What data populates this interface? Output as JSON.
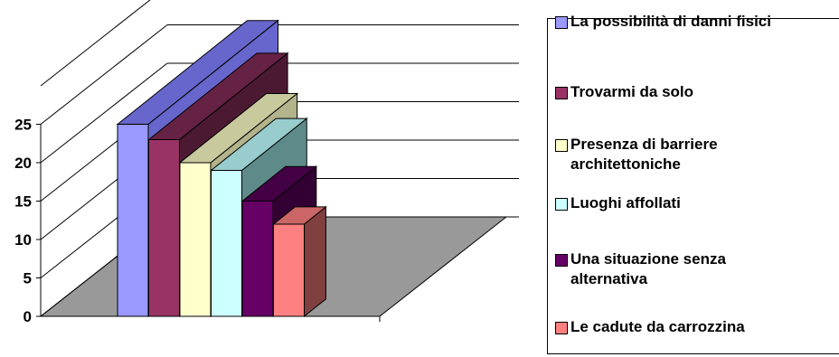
{
  "chart_data": {
    "type": "bar",
    "categories": [
      "La possibilità di danni fisici",
      "Trovarmi da solo",
      "Presenza di barriere architettoniche",
      "Luoghi affollati",
      "Una situazione senza alternativa",
      "Le cadute da carrozzina"
    ],
    "values": [
      25,
      23,
      20,
      19,
      15,
      12
    ],
    "title": "",
    "xlabel": "",
    "ylabel": "",
    "ylim": [
      0,
      25
    ],
    "yticks": [
      "0",
      "5",
      "10",
      "15",
      "20",
      "25"
    ],
    "grid": true,
    "legend_position": "right",
    "colors": [
      "#9999ff",
      "#993366",
      "#ffffcc",
      "#ccffff",
      "#660066",
      "#ff8080"
    ],
    "side_colors": [
      "#6666cc",
      "#4c1933",
      "#b3b38c",
      "#5f8a8a",
      "#330033",
      "#804040"
    ],
    "top_colors": [
      "#6666cc",
      "#662244",
      "#c9c99e",
      "#99cccc",
      "#440044",
      "#cc6666"
    ],
    "floor_color": "#999999"
  },
  "legend": {
    "items": [
      "La possibilità di danni fisici",
      "Trovarmi da solo",
      "Presenza di barriere\narchitettoniche",
      "Luoghi affollati",
      "Una situazione senza\nalternativa",
      "Le cadute da carrozzina"
    ]
  }
}
